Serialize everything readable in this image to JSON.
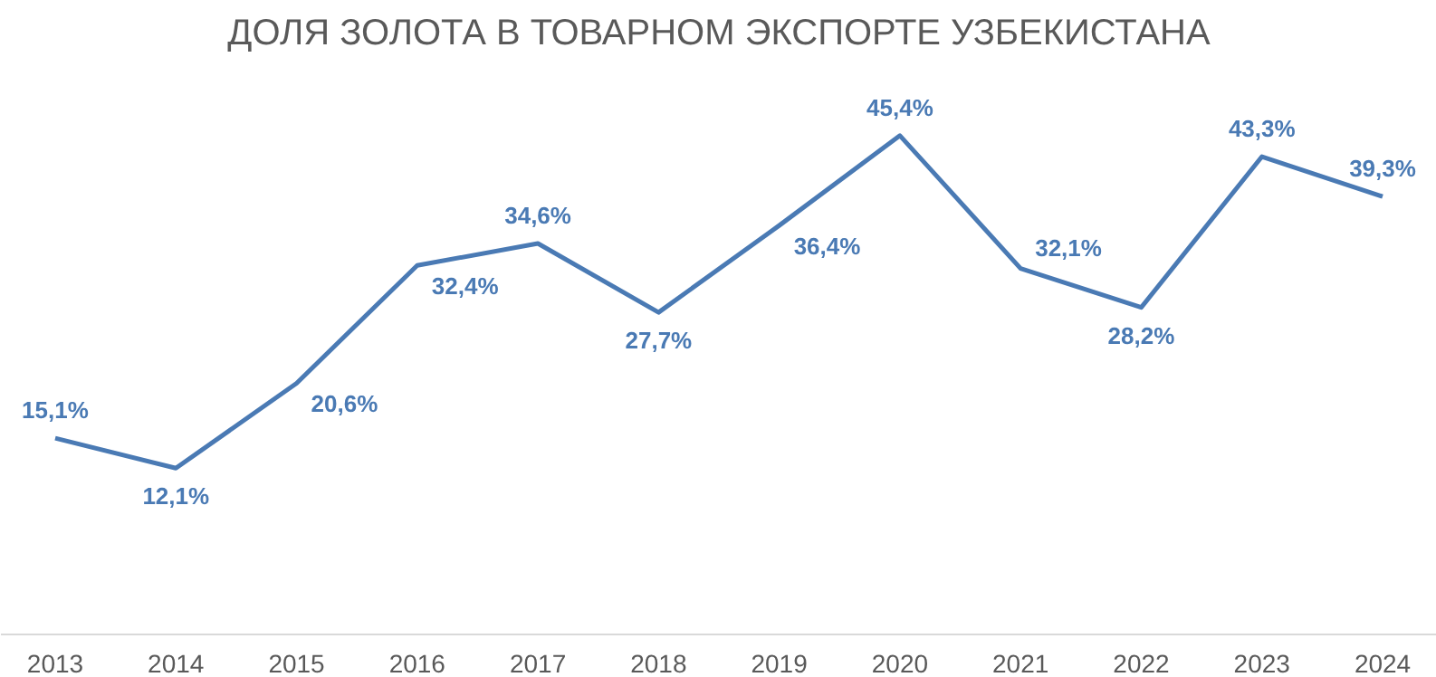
{
  "chart_data": {
    "type": "line",
    "title": "ДОЛЯ ЗОЛОТА В ТОВАРНОМ ЭКСПОРТЕ УЗБЕКИСТАНА",
    "categories": [
      "2013",
      "2014",
      "2015",
      "2016",
      "2017",
      "2018",
      "2019",
      "2020",
      "2021",
      "2022",
      "2023",
      "2024"
    ],
    "series": [
      {
        "color": "#4a7ab4",
        "values": [
          15.1,
          12.1,
          20.6,
          32.4,
          34.6,
          27.7,
          36.4,
          45.4,
          32.1,
          28.2,
          43.3,
          39.3
        ],
        "value_labels": [
          "15,1%",
          "12,1%",
          "20,6%",
          "32,4%",
          "34,6%",
          "27,7%",
          "36,4%",
          "45,4%",
          "32,1%",
          "28,2%",
          "43,3%",
          "39,3%"
        ]
      }
    ],
    "grid": false,
    "marker": "none",
    "line_style": "solid",
    "tick_labels": "x"
  }
}
